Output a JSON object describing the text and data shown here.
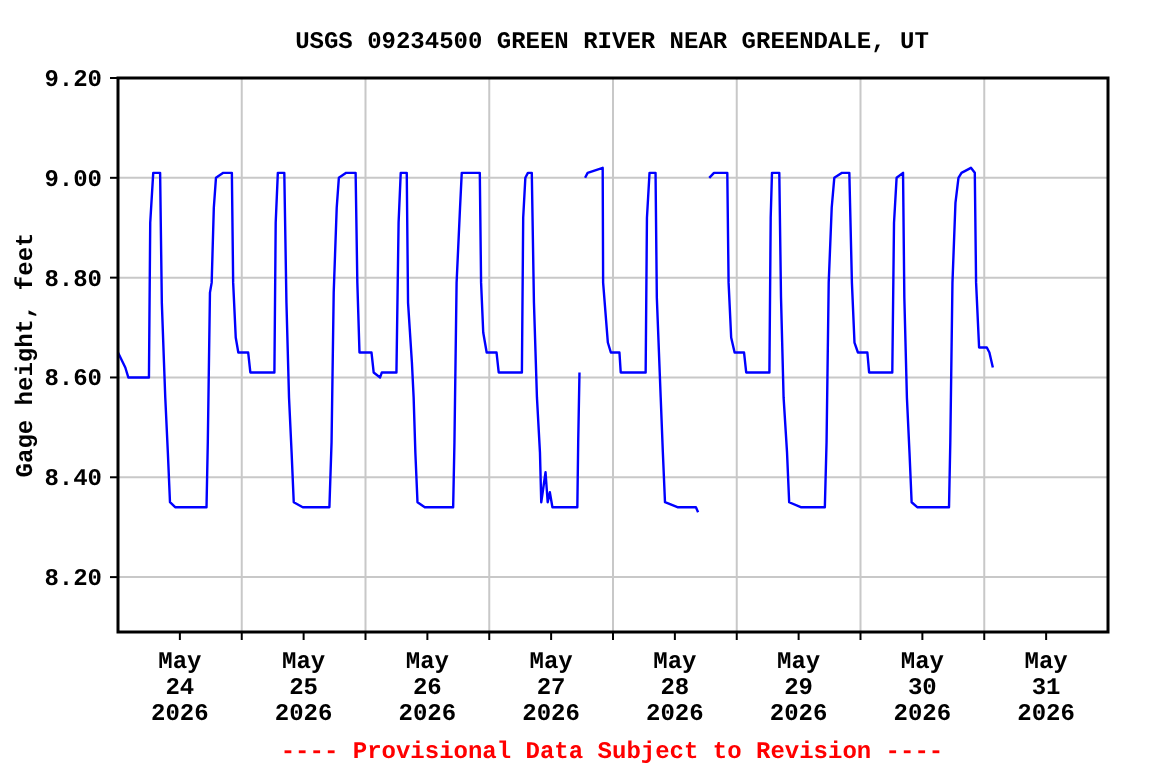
{
  "chart_data": {
    "type": "line",
    "title": "USGS 09234500 GREEN RIVER NEAR GREENDALE, UT",
    "ylabel": "Gage height, feet",
    "annotations": [
      "---- Provisional Data Subject to Revision ----"
    ],
    "grid": true,
    "marker": "none",
    "line_style": "solid",
    "xlim": [
      "2026-05-24T00:00",
      "2026-06-01T00:00"
    ],
    "xticks": [
      {
        "value": "2026-05-24T12:00",
        "label": "May\n24\n2026"
      },
      {
        "value": "2026-05-25T00:00",
        "label": null
      },
      {
        "value": "2026-05-25T12:00",
        "label": "May\n25\n2026"
      },
      {
        "value": "2026-05-26T00:00",
        "label": null
      },
      {
        "value": "2026-05-26T12:00",
        "label": "May\n26\n2026"
      },
      {
        "value": "2026-05-27T00:00",
        "label": null
      },
      {
        "value": "2026-05-27T12:00",
        "label": "May\n27\n2026"
      },
      {
        "value": "2026-05-28T00:00",
        "label": null
      },
      {
        "value": "2026-05-28T12:00",
        "label": "May\n28\n2026"
      },
      {
        "value": "2026-05-29T00:00",
        "label": null
      },
      {
        "value": "2026-05-29T12:00",
        "label": "May\n29\n2026"
      },
      {
        "value": "2026-05-30T00:00",
        "label": null
      },
      {
        "value": "2026-05-30T12:00",
        "label": "May\n30\n2026"
      },
      {
        "value": "2026-05-31T00:00",
        "label": null
      },
      {
        "value": "2026-05-31T12:00",
        "label": "May\n31\n2026"
      }
    ],
    "ylim": [
      8.09,
      9.2
    ],
    "yticks": [
      {
        "value": 8.2,
        "label": "8.20"
      },
      {
        "value": 8.4,
        "label": "8.40"
      },
      {
        "value": 8.6,
        "label": "8.60"
      },
      {
        "value": 8.8,
        "label": "8.80"
      },
      {
        "value": 9.0,
        "label": "9.00"
      },
      {
        "value": 9.2,
        "label": "9.20"
      }
    ],
    "series": [
      {
        "color": "#0000ff",
        "x": [
          "2026-05-24T00:00",
          "2026-05-24T01:25",
          "2026-05-24T02:00",
          "2026-05-24T06:00",
          "2026-05-24T06:15",
          "2026-05-24T06:50",
          "2026-05-24T08:10",
          "2026-05-24T08:30",
          "2026-05-24T08:55",
          "2026-05-24T09:10",
          "2026-05-24T09:40",
          "2026-05-24T10:05",
          "2026-05-24T11:05",
          "2026-05-24T17:10",
          "2026-05-24T17:25",
          "2026-05-24T17:50",
          "2026-05-24T18:10",
          "2026-05-24T18:35",
          "2026-05-24T19:00",
          "2026-05-24T20:25",
          "2026-05-24T22:05",
          "2026-05-24T22:20",
          "2026-05-24T22:50",
          "2026-05-24T23:20",
          "2026-05-25T01:15",
          "2026-05-25T01:40",
          "2026-05-25T06:20",
          "2026-05-25T06:35",
          "2026-05-25T07:00",
          "2026-05-25T08:15",
          "2026-05-25T08:40",
          "2026-05-25T09:10",
          "2026-05-25T09:40",
          "2026-05-25T10:05",
          "2026-05-25T11:50",
          "2026-05-25T17:00",
          "2026-05-25T17:25",
          "2026-05-25T17:50",
          "2026-05-25T18:25",
          "2026-05-25T18:50",
          "2026-05-25T20:15",
          "2026-05-25T22:05",
          "2026-05-25T22:25",
          "2026-05-25T22:50",
          "2026-05-26T01:10",
          "2026-05-26T01:35",
          "2026-05-26T02:50",
          "2026-05-26T03:10",
          "2026-05-26T06:00",
          "2026-05-26T06:25",
          "2026-05-26T06:50",
          "2026-05-26T08:00",
          "2026-05-26T08:15",
          "2026-05-26T09:00",
          "2026-05-26T09:20",
          "2026-05-26T09:40",
          "2026-05-26T10:05",
          "2026-05-26T11:30",
          "2026-05-26T17:00",
          "2026-05-26T17:15",
          "2026-05-26T17:40",
          "2026-05-26T18:20",
          "2026-05-26T18:40",
          "2026-05-26T22:10",
          "2026-05-26T22:25",
          "2026-05-26T22:50",
          "2026-05-26T23:30",
          "2026-05-27T01:25",
          "2026-05-27T01:50",
          "2026-05-27T06:20",
          "2026-05-27T06:35",
          "2026-05-27T07:00",
          "2026-05-27T07:30",
          "2026-05-27T08:15",
          "2026-05-27T08:40",
          "2026-05-27T09:15",
          "2026-05-27T09:50",
          "2026-05-27T10:05",
          "2026-05-27T10:55",
          "2026-05-27T11:20",
          "2026-05-27T11:45",
          "2026-05-27T12:15",
          "2026-05-27T17:05",
          "2026-05-27T17:15",
          "2026-05-27T17:30",
          "2026-05-27T17:45",
          "2026-05-27T18:35",
          "2026-05-27T19:05",
          "2026-05-27T22:00",
          "2026-05-27T22:05",
          "2026-05-27T23:00",
          "2026-05-27T23:35",
          "2026-05-28T01:15",
          "2026-05-28T01:30",
          "2026-05-28T06:20",
          "2026-05-28T06:35",
          "2026-05-28T07:05",
          "2026-05-28T08:15",
          "2026-05-28T08:30",
          "2026-05-28T09:15",
          "2026-05-28T09:40",
          "2026-05-28T10:05",
          "2026-05-28T12:30",
          "2026-05-28T16:05",
          "2026-05-28T16:30",
          "2026-05-28T17:30",
          "2026-05-28T18:40",
          "2026-05-28T19:35",
          "2026-05-28T22:10",
          "2026-05-28T22:25",
          "2026-05-28T22:55",
          "2026-05-28T23:35",
          "2026-05-29T01:25",
          "2026-05-29T01:50",
          "2026-05-29T06:20",
          "2026-05-29T06:35",
          "2026-05-29T06:50",
          "2026-05-29T08:15",
          "2026-05-29T08:35",
          "2026-05-29T09:05",
          "2026-05-29T09:45",
          "2026-05-29T10:10",
          "2026-05-29T12:25",
          "2026-05-29T17:05",
          "2026-05-29T17:25",
          "2026-05-29T17:50",
          "2026-05-29T18:25",
          "2026-05-29T18:55",
          "2026-05-29T20:25",
          "2026-05-29T21:50",
          "2026-05-29T22:20",
          "2026-05-29T22:50",
          "2026-05-29T23:30",
          "2026-05-30T01:20",
          "2026-05-30T01:40",
          "2026-05-30T06:10",
          "2026-05-30T06:30",
          "2026-05-30T07:00",
          "2026-05-30T08:15",
          "2026-05-30T08:30",
          "2026-05-30T09:00",
          "2026-05-30T09:30",
          "2026-05-30T09:55",
          "2026-05-30T11:00",
          "2026-05-30T17:10",
          "2026-05-30T17:25",
          "2026-05-30T17:50",
          "2026-05-30T18:25",
          "2026-05-30T19:00",
          "2026-05-30T19:35",
          "2026-05-30T21:25",
          "2026-05-30T22:10",
          "2026-05-30T22:25",
          "2026-05-30T23:00",
          "2026-05-31T00:30",
          "2026-05-31T01:00",
          "2026-05-31T01:40"
        ],
        "values": [
          8.65,
          8.62,
          8.6,
          8.6,
          8.91,
          9.01,
          9.01,
          8.75,
          8.63,
          8.56,
          8.45,
          8.35,
          8.34,
          8.34,
          8.47,
          8.77,
          8.79,
          8.94,
          9.0,
          9.01,
          9.01,
          8.79,
          8.68,
          8.65,
          8.65,
          8.61,
          8.61,
          8.91,
          9.01,
          9.01,
          8.75,
          8.56,
          8.45,
          8.35,
          8.34,
          8.34,
          8.47,
          8.77,
          8.94,
          9.0,
          9.01,
          9.01,
          8.79,
          8.65,
          8.65,
          8.61,
          8.6,
          8.61,
          8.61,
          8.91,
          9.01,
          9.01,
          8.75,
          8.63,
          8.56,
          8.45,
          8.35,
          8.34,
          8.34,
          8.47,
          8.79,
          8.94,
          9.01,
          9.01,
          8.79,
          8.69,
          8.65,
          8.65,
          8.61,
          8.61,
          8.92,
          9.0,
          9.01,
          9.01,
          8.75,
          8.56,
          8.45,
          8.35,
          8.41,
          8.35,
          8.37,
          8.34,
          8.34,
          8.47,
          8.61,
          null,
          9.0,
          9.01,
          9.02,
          8.79,
          8.67,
          8.65,
          8.65,
          8.61,
          8.61,
          8.92,
          9.01,
          9.01,
          8.76,
          8.56,
          8.45,
          8.35,
          8.34,
          8.34,
          8.33,
          null,
          9.0,
          9.01,
          9.01,
          8.79,
          8.68,
          8.65,
          8.65,
          8.61,
          8.61,
          8.92,
          9.01,
          9.01,
          8.76,
          8.56,
          8.45,
          8.35,
          8.34,
          8.34,
          8.47,
          8.79,
          8.94,
          9.0,
          9.01,
          9.01,
          8.79,
          8.67,
          8.65,
          8.65,
          8.61,
          8.61,
          8.91,
          9.0,
          9.01,
          8.76,
          8.56,
          8.45,
          8.35,
          8.34,
          8.34,
          8.47,
          8.79,
          8.95,
          9.0,
          9.01,
          9.02,
          9.01,
          8.79,
          8.66,
          8.66,
          8.65,
          8.62
        ]
      }
    ]
  }
}
